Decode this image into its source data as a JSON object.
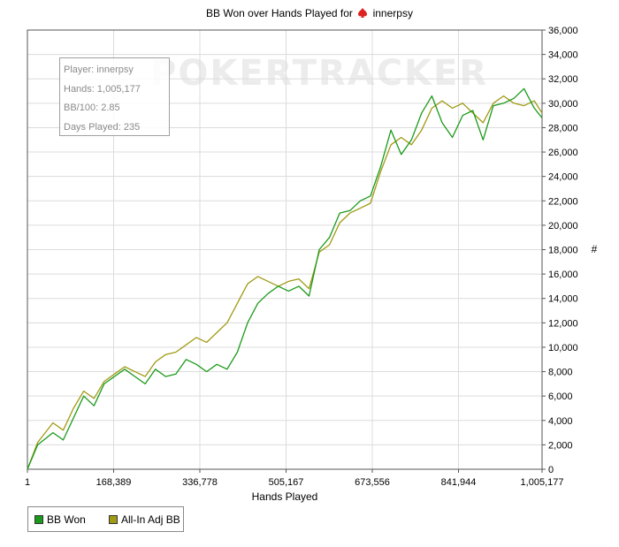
{
  "chart_data": {
    "type": "line",
    "title": "BB Won over Hands Played for",
    "player_name": "innerpsy",
    "xlabel": "Hands Played",
    "ylabel": "#",
    "xlim": [
      1,
      1005177
    ],
    "ylim": [
      0,
      36000
    ],
    "x_ticks": [
      1,
      168389,
      336778,
      505167,
      673556,
      841944,
      1005177
    ],
    "x_tick_labels": [
      "1",
      "168,389",
      "336,778",
      "505,167",
      "673,556",
      "841,944",
      "1,005,177"
    ],
    "y_ticks": [
      0,
      2000,
      4000,
      6000,
      8000,
      10000,
      12000,
      14000,
      16000,
      18000,
      20000,
      22000,
      24000,
      26000,
      28000,
      30000,
      32000,
      34000,
      36000
    ],
    "y_tick_labels": [
      "0",
      "2,000",
      "4,000",
      "6,000",
      "8,000",
      "10,000",
      "12,000",
      "14,000",
      "16,000",
      "18,000",
      "20,000",
      "22,000",
      "24,000",
      "26,000",
      "28,000",
      "30,000",
      "32,000",
      "34,000",
      "36,000"
    ],
    "grid": true,
    "legend_position": "bottom-left",
    "series": [
      {
        "name": "BB Won",
        "color": "#1a9a1a",
        "x": [
          1,
          20000,
          50000,
          70000,
          90000,
          110000,
          130000,
          150000,
          170000,
          190000,
          210000,
          230000,
          250000,
          270000,
          290000,
          310000,
          330000,
          350000,
          370000,
          390000,
          410000,
          430000,
          450000,
          470000,
          490000,
          510000,
          530000,
          550000,
          570000,
          590000,
          610000,
          630000,
          650000,
          670000,
          690000,
          710000,
          730000,
          750000,
          770000,
          790000,
          810000,
          830000,
          850000,
          870000,
          890000,
          910000,
          930000,
          950000,
          970000,
          990000,
          1005177
        ],
        "values": [
          0,
          2000,
          3000,
          2400,
          4200,
          6000,
          5200,
          7000,
          7600,
          8200,
          7600,
          7000,
          8200,
          7600,
          7800,
          9000,
          8600,
          8000,
          8600,
          8200,
          9600,
          12000,
          13600,
          14400,
          15000,
          14600,
          15000,
          14200,
          18000,
          19000,
          21000,
          21200,
          22000,
          22400,
          24800,
          27800,
          25800,
          27000,
          29200,
          30600,
          28400,
          27200,
          29000,
          29400,
          27000,
          29800,
          30000,
          30400,
          31200,
          29600,
          28800
        ]
      },
      {
        "name": "All-In Adj BB",
        "color": "#a09a14",
        "x": [
          1,
          20000,
          50000,
          70000,
          90000,
          110000,
          130000,
          150000,
          170000,
          190000,
          210000,
          230000,
          250000,
          270000,
          290000,
          310000,
          330000,
          350000,
          370000,
          390000,
          410000,
          430000,
          450000,
          470000,
          490000,
          510000,
          530000,
          550000,
          570000,
          590000,
          610000,
          630000,
          650000,
          670000,
          690000,
          710000,
          730000,
          750000,
          770000,
          790000,
          810000,
          830000,
          850000,
          870000,
          890000,
          910000,
          930000,
          950000,
          970000,
          990000,
          1005177
        ],
        "values": [
          0,
          2200,
          3800,
          3200,
          5000,
          6400,
          5800,
          7200,
          7800,
          8400,
          8000,
          7600,
          8800,
          9400,
          9600,
          10200,
          10800,
          10400,
          11200,
          12000,
          13600,
          15200,
          15800,
          15400,
          15000,
          15400,
          15600,
          14800,
          17800,
          18400,
          20200,
          21000,
          21400,
          21800,
          24400,
          26600,
          27200,
          26600,
          27800,
          29600,
          30200,
          29600,
          30000,
          29200,
          28400,
          30000,
          30600,
          30000,
          29800,
          30200,
          29200
        ]
      }
    ]
  },
  "info": {
    "watermark": "POKERTRACKER",
    "lines": [
      "Player: innerpsy",
      "Hands: 1,005,177",
      "BB/100: 2.85",
      "Days Played: 235"
    ]
  }
}
